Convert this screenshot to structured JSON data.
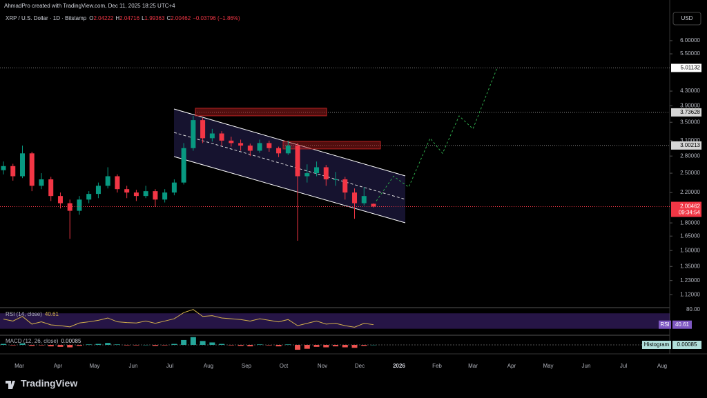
{
  "header": {
    "author_line": "AhmadPro created with TradingView.com, Dec 11, 2025 18:25 UTC+4",
    "symbol": "XRP / U.S. Dollar · 1D · Bitstamp",
    "ohlc": [
      {
        "key": "O",
        "value": "2.04222"
      },
      {
        "key": "H",
        "value": "2.04716"
      },
      {
        "key": "L",
        "value": "1.99363"
      },
      {
        "key": "C",
        "value": "2.00462"
      }
    ],
    "change": "−0.03796 (−1.86%)",
    "currency": "USD"
  },
  "chart_data": [
    {
      "type": "candlestick",
      "log_scale": true,
      "up_color": "#089981",
      "down_color": "#f23645",
      "ylim": [
        1.033,
        7.85
      ],
      "yticks": [
        {
          "value": 6,
          "label": "6.00000"
        },
        {
          "value": 5.5,
          "label": "5.50000"
        },
        {
          "value": 4.3,
          "label": "4.30000"
        },
        {
          "value": 3.9,
          "label": "3.90000"
        },
        {
          "value": 3.5,
          "label": "3.50000"
        },
        {
          "value": 3.1,
          "label": "3.10000"
        },
        {
          "value": 2.8,
          "label": "2.80000"
        },
        {
          "value": 2.5,
          "label": "2.50000"
        },
        {
          "value": 2.2,
          "label": "2.20000"
        },
        {
          "value": 1.8,
          "label": "1.80000"
        },
        {
          "value": 1.65,
          "label": "1.65000"
        },
        {
          "value": 1.5,
          "label": "1.50000"
        },
        {
          "value": 1.35,
          "label": "1.35000"
        },
        {
          "value": 1.23,
          "label": "1.23000"
        },
        {
          "value": 1.12,
          "label": "1.12000"
        }
      ],
      "price_lines": [
        {
          "value": 5.01132,
          "label": "5.01132"
        },
        {
          "value": 3.73628,
          "label": "3.73628"
        },
        {
          "value": 3.00213,
          "label": "3.00213"
        }
      ],
      "last_price": {
        "value": 2.00462,
        "label": "2.00462",
        "countdown": "09:34:54"
      },
      "projection": [
        2.08,
        2.45,
        2.28,
        3.15,
        2.85,
        3.65,
        3.35,
        5.01132
      ],
      "x_labels": [
        "Mar",
        "Apr",
        "May",
        "Jun",
        "Jul",
        "Aug",
        "Sep",
        "Oct",
        "Nov",
        "Dec",
        "2026",
        "Feb",
        "Mar",
        "Apr",
        "May",
        "Jun",
        "Jul",
        "Aug"
      ],
      "ohlc": [
        [
          2.55,
          2.7,
          2.48,
          2.62
        ],
        [
          2.62,
          2.66,
          2.38,
          2.45
        ],
        [
          2.45,
          3.0,
          2.42,
          2.85
        ],
        [
          2.85,
          2.88,
          2.22,
          2.3
        ],
        [
          2.3,
          2.5,
          2.25,
          2.4
        ],
        [
          2.4,
          2.44,
          2.08,
          2.15
        ],
        [
          2.15,
          2.2,
          1.98,
          2.05
        ],
        [
          2.05,
          2.1,
          1.62,
          1.95
        ],
        [
          1.95,
          2.15,
          1.9,
          2.1
        ],
        [
          2.1,
          2.22,
          2.05,
          2.18
        ],
        [
          2.18,
          2.35,
          2.12,
          2.3
        ],
        [
          2.3,
          2.6,
          2.26,
          2.45
        ],
        [
          2.45,
          2.48,
          2.2,
          2.25
        ],
        [
          2.25,
          2.3,
          2.12,
          2.2
        ],
        [
          2.2,
          2.24,
          2.08,
          2.15
        ],
        [
          2.15,
          2.3,
          2.12,
          2.22
        ],
        [
          2.22,
          2.25,
          2.0,
          2.1
        ],
        [
          2.1,
          2.25,
          2.06,
          2.2
        ],
        [
          2.2,
          2.4,
          2.16,
          2.35
        ],
        [
          2.35,
          3.05,
          2.32,
          2.95
        ],
        [
          2.95,
          3.65,
          2.9,
          3.55
        ],
        [
          3.55,
          3.6,
          3.05,
          3.15
        ],
        [
          3.15,
          3.35,
          3.08,
          3.25
        ],
        [
          3.25,
          3.3,
          3.0,
          3.1
        ],
        [
          3.1,
          3.18,
          2.98,
          3.05
        ],
        [
          3.05,
          3.12,
          2.9,
          3.0
        ],
        [
          3.0,
          3.04,
          2.8,
          2.9
        ],
        [
          2.9,
          3.12,
          2.86,
          3.05
        ],
        [
          3.05,
          3.1,
          2.88,
          2.95
        ],
        [
          2.95,
          2.98,
          2.78,
          2.85
        ],
        [
          2.85,
          3.1,
          2.82,
          3.0
        ],
        [
          3.0,
          3.05,
          1.6,
          2.45
        ],
        [
          2.45,
          2.65,
          2.35,
          2.5
        ],
        [
          2.5,
          2.7,
          2.45,
          2.6
        ],
        [
          2.6,
          2.64,
          2.3,
          2.4
        ],
        [
          2.4,
          2.52,
          2.3,
          2.4
        ],
        [
          2.4,
          2.44,
          2.1,
          2.2
        ],
        [
          2.2,
          2.26,
          1.85,
          2.05
        ],
        [
          2.05,
          2.28,
          2.02,
          2.15
        ],
        [
          2.04222,
          2.04716,
          1.99363,
          2.00462
        ]
      ]
    },
    {
      "type": "line",
      "title": "RSI (14, close)",
      "value_label": "40.61",
      "tag": "RSI",
      "color": "#d4b24c",
      "band": [
        30,
        70
      ],
      "ylim": [
        15,
        83
      ],
      "yticks": [
        {
          "value": 80,
          "label": "80.00"
        }
      ],
      "values": [
        55,
        50,
        62,
        42,
        48,
        40,
        38,
        35,
        45,
        48,
        52,
        58,
        48,
        46,
        45,
        50,
        44,
        50,
        56,
        72,
        80,
        62,
        64,
        58,
        56,
        54,
        50,
        56,
        52,
        48,
        54,
        38,
        44,
        50,
        42,
        44,
        38,
        34,
        44,
        40.61
      ]
    },
    {
      "type": "bar",
      "title": "MACD (12, 26, close)",
      "value_label": "0.00085",
      "tag": "Histogram",
      "pos_color": "#26a69a",
      "neg_color": "#ef5350",
      "ylim": [
        -0.17,
        0.17
      ],
      "values": [
        0.02,
        -0.01,
        0.03,
        -0.02,
        -0.01,
        -0.03,
        -0.04,
        -0.05,
        -0.02,
        0.01,
        0.02,
        0.04,
        0.01,
        -0.01,
        -0.01,
        0,
        -0.02,
        -0.01,
        0.02,
        0.1,
        0.16,
        0.08,
        0.05,
        0.02,
        -0.01,
        -0.02,
        -0.03,
        0.01,
        -0.01,
        -0.03,
        0.01,
        -0.1,
        -0.08,
        -0.04,
        -0.05,
        -0.03,
        -0.05,
        -0.06,
        -0.02,
        0.00085
      ]
    }
  ],
  "footer": {
    "brand": "TradingView"
  }
}
